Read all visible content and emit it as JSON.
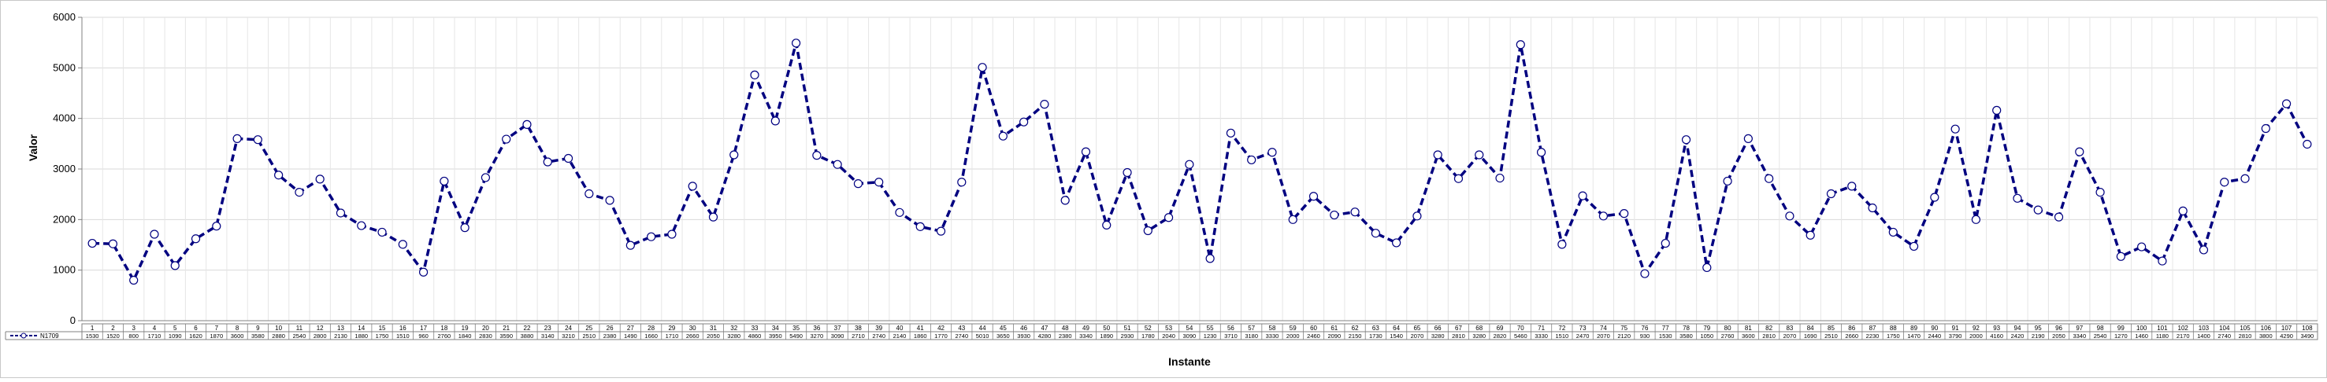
{
  "chart_data": {
    "type": "line",
    "title": "",
    "xlabel": "Instante",
    "ylabel": "Valor",
    "ylim": [
      0,
      6000
    ],
    "yticks": [
      "0",
      "1000",
      "2000",
      "3000",
      "4000",
      "5000",
      "6000"
    ],
    "grid": true,
    "legend": "data-table",
    "series": [
      {
        "name": "N1709",
        "color": "#000080",
        "marker": "open-circle",
        "line_style": "dashed",
        "values": [
          1530,
          1520,
          800,
          1710,
          1090,
          1620,
          1870,
          3600,
          3580,
          2880,
          2540,
          2800,
          2130,
          1880,
          1750,
          1510,
          960,
          2760,
          1840,
          2830,
          3590,
          3880,
          3140,
          3210,
          2510,
          2380,
          1490,
          1660,
          1710,
          2660,
          2050,
          3280,
          4860,
          3950,
          5490,
          3270,
          3090,
          2710,
          2740,
          2140,
          1860,
          1770,
          2740,
          5010,
          3650,
          3930,
          4280,
          2380,
          3340,
          1890,
          2930,
          1780,
          2040,
          3090,
          1230,
          3710,
          3180,
          3330,
          2000,
          2460,
          2090,
          2150,
          1730,
          1540,
          2070,
          3280,
          2810,
          3280,
          2820,
          5460,
          3330,
          1510,
          2470,
          2070,
          2120,
          930,
          1530,
          3580,
          1050,
          2760,
          3600,
          2810,
          2070,
          1690,
          2510,
          2660,
          2230,
          1750,
          1470,
          2440,
          3790,
          2000,
          4160,
          2420,
          2190,
          2050,
          3340,
          2540,
          1270,
          1460,
          1180,
          2170,
          1400,
          2740,
          2810,
          3800,
          4290,
          3490
        ]
      }
    ],
    "categories": [
      "1",
      "2",
      "3",
      "4",
      "5",
      "6",
      "7",
      "8",
      "9",
      "10",
      "11",
      "12",
      "13",
      "14",
      "15",
      "16",
      "17",
      "18",
      "19",
      "20",
      "21",
      "22",
      "23",
      "24",
      "25",
      "26",
      "27",
      "28",
      "29",
      "30",
      "31",
      "32",
      "33",
      "34",
      "35",
      "36",
      "37",
      "38",
      "39",
      "40",
      "41",
      "42",
      "43",
      "44",
      "45",
      "46",
      "47",
      "48",
      "49",
      "50",
      "51",
      "52",
      "53",
      "54",
      "55",
      "56",
      "57",
      "58",
      "59",
      "60",
      "61",
      "62",
      "63",
      "64",
      "65",
      "66",
      "67",
      "68",
      "69",
      "70",
      "71",
      "72",
      "73",
      "74",
      "75",
      "76",
      "77",
      "78",
      "79",
      "80",
      "81",
      "82",
      "83",
      "84",
      "85",
      "86",
      "87",
      "88",
      "89",
      "90",
      "91",
      "92",
      "93",
      "94",
      "95",
      "96",
      "97",
      "98",
      "99",
      "100",
      "101",
      "102",
      "103",
      "104",
      "105",
      "106",
      "107",
      "108"
    ]
  }
}
